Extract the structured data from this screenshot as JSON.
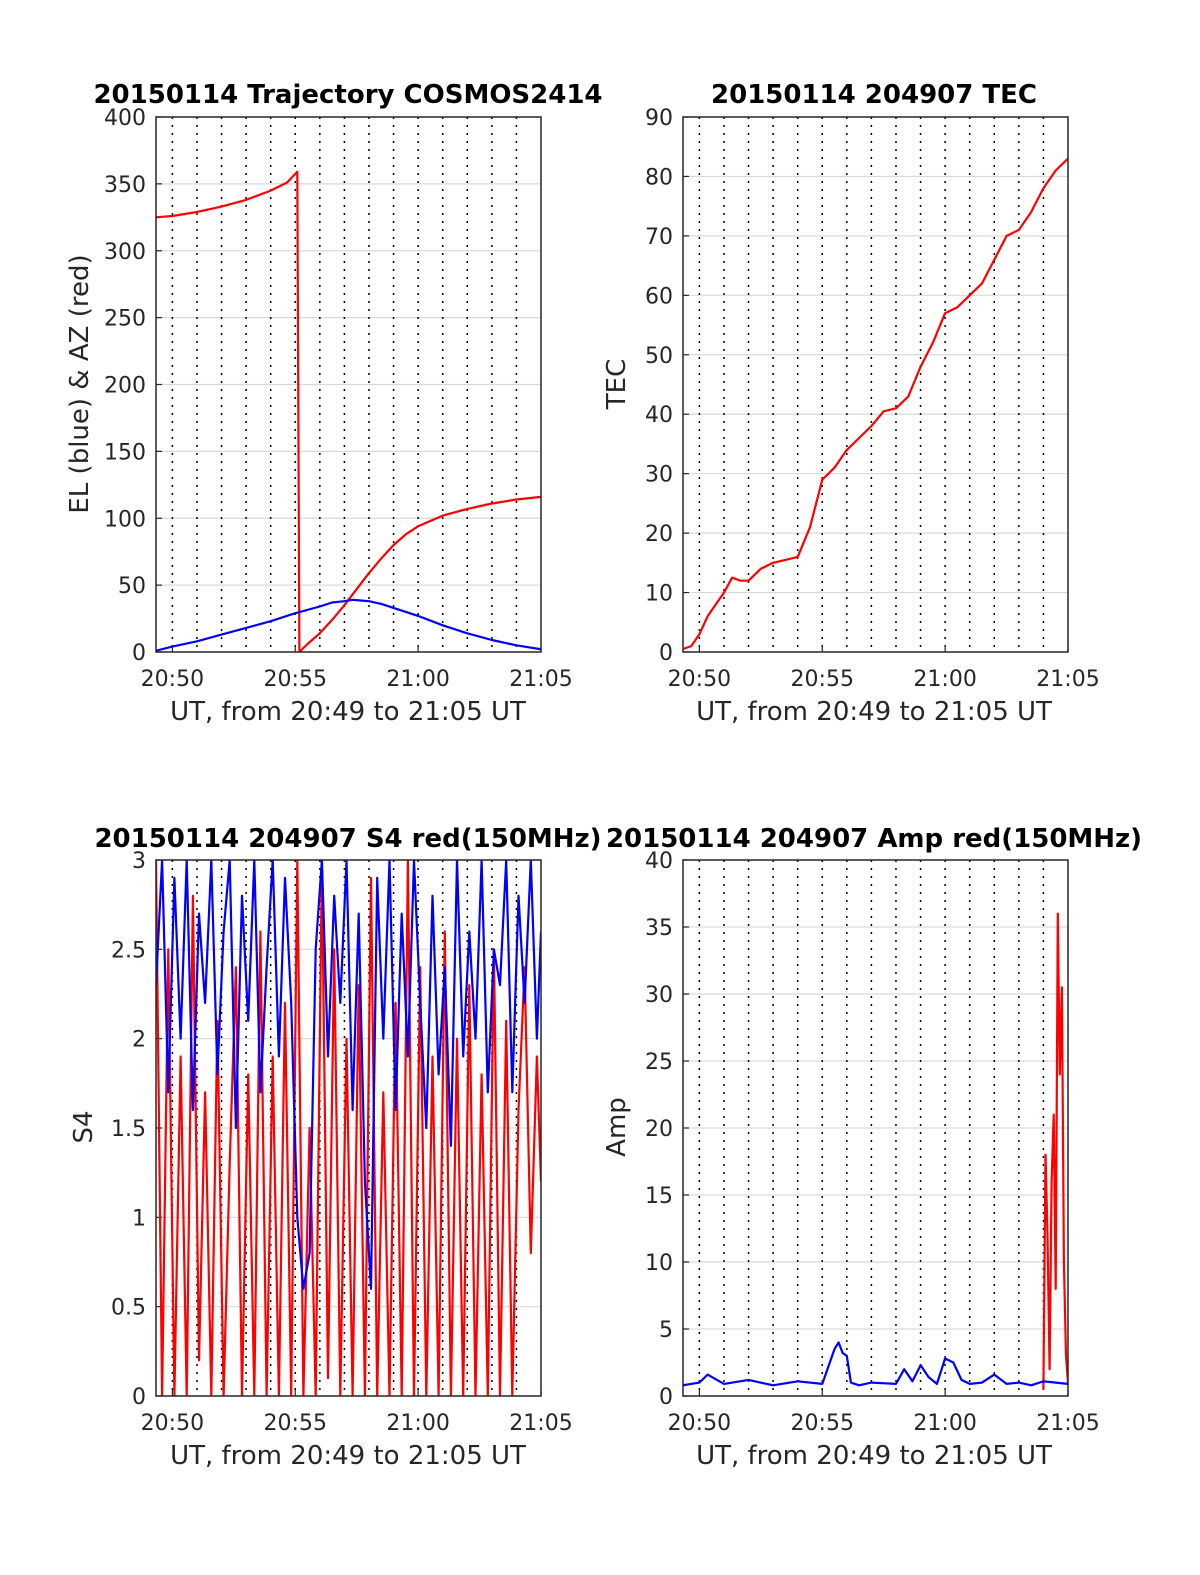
{
  "chart_data": [
    {
      "id": "p1",
      "type": "line",
      "title": "20150114 Trajectory COSMOS2414",
      "xlabel": "UT, from 20:49 to 21:05 UT",
      "ylabel": "EL (blue) & AZ (red)",
      "xlim": [
        "20:49:20",
        "21:05:00"
      ],
      "ylim": [
        0,
        400
      ],
      "yticks": [
        0,
        50,
        100,
        150,
        200,
        250,
        300,
        350,
        400
      ],
      "xtick_labels": [
        "20:50",
        "20:55",
        "21:00",
        "21:05"
      ],
      "grid": true,
      "series": [
        {
          "color": "#ff0000",
          "x": [
            "20:49:20",
            "20:50:00",
            "20:51:00",
            "20:52:00",
            "20:53:00",
            "20:54:00",
            "20:54:40",
            "20:55:05",
            "20:55:10",
            "20:55:30",
            "20:56:00",
            "20:56:30",
            "20:57:00",
            "20:57:30",
            "20:58:00",
            "20:58:30",
            "20:59:00",
            "20:59:30",
            "21:00:00",
            "21:01:00",
            "21:02:00",
            "21:03:00",
            "21:04:00",
            "21:05:00"
          ],
          "y": [
            325,
            326,
            329,
            333,
            338,
            345,
            351,
            359,
            0,
            6,
            14,
            24,
            35,
            47,
            59,
            70,
            80,
            88,
            94,
            102,
            107,
            111,
            114,
            116
          ]
        },
        {
          "color": "#0000ff",
          "x": [
            "20:49:20",
            "20:50:00",
            "20:51:00",
            "20:52:00",
            "20:53:00",
            "20:54:00",
            "20:55:00",
            "20:56:00",
            "20:56:30",
            "20:57:00",
            "20:57:20",
            "20:57:40",
            "20:58:00",
            "20:58:30",
            "20:59:00",
            "21:00:00",
            "21:01:00",
            "21:02:00",
            "21:03:00",
            "21:04:00",
            "21:05:00"
          ],
          "y": [
            1,
            4,
            8,
            13,
            18,
            23,
            29,
            34,
            37,
            38,
            39,
            38.5,
            38,
            36,
            33,
            27,
            20,
            14,
            9,
            5,
            2
          ]
        }
      ]
    },
    {
      "id": "p2",
      "type": "line",
      "title": "20150114 204907 TEC",
      "xlabel": "UT, from 20:49 to 21:05 UT",
      "ylabel": "TEC",
      "xlim": [
        "20:49:20",
        "21:05:00"
      ],
      "ylim": [
        0,
        90
      ],
      "yticks": [
        0,
        10,
        20,
        30,
        40,
        50,
        60,
        70,
        80,
        90
      ],
      "xtick_labels": [
        "20:50",
        "20:55",
        "21:00",
        "21:05"
      ],
      "grid": true,
      "series": [
        {
          "color": "#ff0000",
          "x": [
            "20:49:20",
            "20:49:40",
            "20:50:00",
            "20:50:20",
            "20:50:40",
            "20:51:00",
            "20:51:20",
            "20:51:40",
            "20:52:00",
            "20:52:30",
            "20:53:00",
            "20:53:30",
            "20:54:00",
            "20:54:30",
            "20:55:00",
            "20:55:30",
            "20:56:00",
            "20:56:30",
            "20:57:00",
            "20:57:30",
            "20:58:00",
            "20:58:30",
            "20:59:00",
            "20:59:30",
            "21:00:00",
            "21:00:30",
            "21:01:00",
            "21:01:30",
            "21:02:00",
            "21:02:30",
            "21:03:00",
            "21:03:30",
            "21:04:00",
            "21:04:30",
            "21:05:00"
          ],
          "y": [
            0.5,
            1,
            3,
            6,
            8,
            10,
            12.5,
            12,
            12,
            14,
            15,
            15.5,
            16,
            21,
            29,
            31,
            34,
            36,
            38,
            40.5,
            41,
            43,
            48,
            52,
            57,
            58,
            60,
            62,
            66,
            70,
            71,
            74,
            78,
            81,
            83
          ]
        }
      ]
    },
    {
      "id": "p3",
      "type": "line",
      "title": "20150114 204907 S4 red(150MHz)",
      "xlabel": "UT, from 20:49 to 21:05 UT",
      "ylabel": "S4",
      "xlim": [
        "20:49:20",
        "21:05:00"
      ],
      "ylim": [
        0,
        3
      ],
      "yticks": [
        "0",
        "0.5",
        "1",
        "1.5",
        "2",
        "2.5",
        "3"
      ],
      "xtick_labels": [
        "20:50",
        "20:55",
        "21:00",
        "21:05"
      ],
      "grid": true,
      "series": [
        {
          "color": "#ff0000",
          "x": [
            "20:49:20",
            "20:49:35",
            "20:49:50",
            "20:50:05",
            "20:50:20",
            "20:50:35",
            "20:50:50",
            "20:51:05",
            "20:51:20",
            "20:51:35",
            "20:51:50",
            "20:52:05",
            "20:52:20",
            "20:52:35",
            "20:52:50",
            "20:53:05",
            "20:53:20",
            "20:53:35",
            "20:53:50",
            "20:54:05",
            "20:54:20",
            "20:54:35",
            "20:54:50",
            "20:55:05",
            "20:55:20",
            "20:55:35",
            "20:55:50",
            "20:56:05",
            "20:56:20",
            "20:56:35",
            "20:56:50",
            "20:57:05",
            "20:57:20",
            "20:57:35",
            "20:57:50",
            "20:58:05",
            "20:58:20",
            "20:58:35",
            "20:58:50",
            "20:59:05",
            "20:59:20",
            "20:59:35",
            "20:59:50",
            "21:00:05",
            "21:00:20",
            "21:00:35",
            "21:00:50",
            "21:01:05",
            "21:01:20",
            "21:01:35",
            "21:01:50",
            "21:02:05",
            "21:02:20",
            "21:02:35",
            "21:02:50",
            "21:03:05",
            "21:03:20",
            "21:03:35",
            "21:03:50",
            "21:04:05",
            "21:04:20",
            "21:04:35",
            "21:04:50",
            "21:05:00"
          ],
          "y": [
            3,
            0,
            2.5,
            0,
            1.9,
            0,
            2.8,
            0.2,
            1.7,
            0,
            2.1,
            0,
            1.3,
            2.4,
            0,
            1.8,
            0,
            2.6,
            0,
            1.9,
            0,
            2.2,
            0,
            3,
            0,
            1.5,
            0,
            3,
            0.1,
            2.5,
            0,
            2.0,
            0,
            2.3,
            0,
            2.9,
            0,
            1.7,
            0,
            2.2,
            0,
            3,
            0,
            2.4,
            0,
            1.9,
            0,
            2.6,
            0,
            2.0,
            0,
            2.3,
            0,
            1.8,
            0,
            2.5,
            0,
            2.1,
            0,
            1.6,
            2.4,
            0.8,
            1.9,
            1.2
          ]
        },
        {
          "color": "#0000ff",
          "x": [
            "20:49:20",
            "20:49:35",
            "20:49:50",
            "20:50:05",
            "20:50:20",
            "20:50:35",
            "20:50:50",
            "20:51:05",
            "20:51:20",
            "20:51:35",
            "20:51:50",
            "20:52:05",
            "20:52:20",
            "20:52:35",
            "20:52:50",
            "20:53:05",
            "20:53:20",
            "20:53:35",
            "20:53:50",
            "20:54:05",
            "20:54:20",
            "20:54:35",
            "20:54:50",
            "20:55:05",
            "20:55:20",
            "20:55:35",
            "20:55:50",
            "20:56:05",
            "20:56:20",
            "20:56:35",
            "20:56:50",
            "20:57:05",
            "20:57:20",
            "20:57:35",
            "20:57:50",
            "20:58:05",
            "20:58:20",
            "20:58:35",
            "20:58:50",
            "20:59:05",
            "20:59:20",
            "20:59:35",
            "20:59:50",
            "21:00:05",
            "21:00:20",
            "21:00:35",
            "21:00:50",
            "21:01:05",
            "21:01:20",
            "21:01:35",
            "21:01:50",
            "21:02:05",
            "21:02:20",
            "21:02:35",
            "21:02:50",
            "21:03:05",
            "21:03:20",
            "21:03:35",
            "21:03:50",
            "21:04:05",
            "21:04:20",
            "21:04:35",
            "21:04:50",
            "21:05:00"
          ],
          "y": [
            2.3,
            3,
            1.7,
            2.9,
            2.0,
            3,
            1.6,
            2.7,
            2.2,
            3,
            1.8,
            2.6,
            3,
            1.5,
            2.8,
            2.1,
            3,
            1.7,
            2.4,
            3,
            1.9,
            2.9,
            2.2,
            1.0,
            0.6,
            0.8,
            2.5,
            3,
            1.9,
            2.8,
            2.2,
            3,
            1.6,
            2.7,
            1.2,
            0.6,
            2.9,
            2.0,
            3,
            1.6,
            2.7,
            1.9,
            3,
            2.2,
            1.5,
            2.8,
            1.8,
            2.4,
            1.4,
            3,
            1.9,
            2.6,
            2.0,
            3,
            1.7,
            2.5,
            2.3,
            3,
            1.7,
            2.8,
            2.2,
            3,
            2.0,
            2.6
          ]
        }
      ]
    },
    {
      "id": "p4",
      "type": "line",
      "title": "20150114 204907 Amp red(150MHz)",
      "xlabel": "UT, from 20:49 to 21:05 UT",
      "ylabel": "Amp",
      "xlim": [
        "20:49:20",
        "21:05:00"
      ],
      "ylim": [
        0,
        40
      ],
      "yticks": [
        0,
        5,
        10,
        15,
        20,
        25,
        30,
        35,
        40
      ],
      "xtick_labels": [
        "20:50",
        "20:55",
        "21:00",
        "21:05"
      ],
      "grid": true,
      "series": [
        {
          "color": "#ff0000",
          "x": [
            "21:04:00",
            "21:04:05",
            "21:04:10",
            "21:04:15",
            "21:04:20",
            "21:04:25",
            "21:04:30",
            "21:04:35",
            "21:04:40",
            "21:04:45",
            "21:04:50",
            "21:04:55",
            "21:05:00"
          ],
          "y": [
            0.5,
            18,
            12,
            2,
            16,
            21,
            8,
            36,
            24,
            30.5,
            10,
            3,
            1
          ]
        },
        {
          "color": "#0000ff",
          "x": [
            "20:49:20",
            "20:50:00",
            "20:50:20",
            "20:51:00",
            "20:52:00",
            "20:53:00",
            "20:54:00",
            "20:55:00",
            "20:55:30",
            "20:55:40",
            "20:55:50",
            "20:56:00",
            "20:56:10",
            "20:56:30",
            "20:57:00",
            "20:58:00",
            "20:58:20",
            "20:58:40",
            "20:59:00",
            "20:59:20",
            "20:59:40",
            "21:00:00",
            "21:00:20",
            "21:00:40",
            "21:01:00",
            "21:01:30",
            "21:02:00",
            "21:02:30",
            "21:03:00",
            "21:03:30",
            "21:04:00",
            "21:04:30",
            "21:05:00"
          ],
          "y": [
            0.8,
            1.0,
            1.6,
            0.9,
            1.2,
            0.8,
            1.1,
            0.9,
            3.5,
            4.0,
            3.2,
            3.0,
            1.0,
            0.8,
            1.0,
            0.9,
            2.0,
            1.1,
            2.3,
            1.4,
            0.9,
            2.8,
            2.5,
            1.2,
            0.9,
            1.0,
            1.6,
            0.9,
            1.0,
            0.8,
            1.1,
            1.0,
            0.9
          ]
        }
      ]
    }
  ]
}
